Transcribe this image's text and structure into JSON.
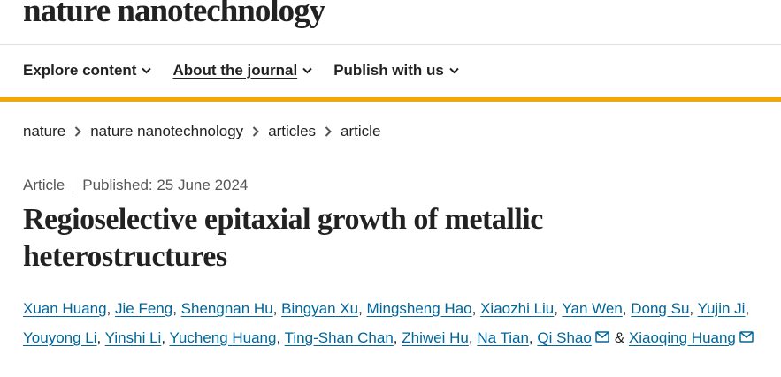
{
  "header": {
    "logo": "nature nanotechnology",
    "nav": [
      "Explore content",
      "About the journal",
      "Publish with us"
    ]
  },
  "breadcrumbs": {
    "links": [
      "nature",
      "nature nanotechnology",
      "articles"
    ],
    "current": "article"
  },
  "article": {
    "type": "Article",
    "published": "Published: 25 June 2024",
    "title": "Regioselective epitaxial growth of metallic heterostructures",
    "authors": [
      {
        "name": "Xuan Huang",
        "after": ","
      },
      {
        "name": "Jie Feng",
        "after": ","
      },
      {
        "name": "Shengnan Hu",
        "after": ","
      },
      {
        "name": "Bingyan Xu",
        "after": ","
      },
      {
        "name": "Mingsheng Hao",
        "after": ","
      },
      {
        "name": "Xiaozhi Liu",
        "after": ","
      },
      {
        "name": "Yan Wen",
        "after": ","
      },
      {
        "name": "Dong Su",
        "after": ","
      },
      {
        "name": "Yujin Ji",
        "after": ","
      },
      {
        "name": "Youyong Li",
        "after": ","
      },
      {
        "name": "Yinshi Li",
        "after": ","
      },
      {
        "name": "Yucheng Huang",
        "after": ","
      },
      {
        "name": "Ting-Shan Chan",
        "after": ","
      },
      {
        "name": "Zhiwei Hu",
        "after": ","
      },
      {
        "name": "Na Tian",
        "after": ","
      },
      {
        "name": "Qi Shao",
        "corresponding": true,
        "after": "&"
      },
      {
        "name": "Xiaoqing Huang",
        "corresponding": true
      }
    ]
  }
}
